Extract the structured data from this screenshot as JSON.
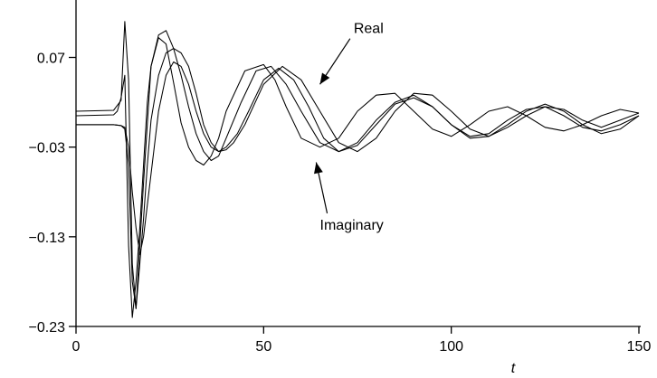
{
  "chart_data": {
    "type": "line",
    "title": "",
    "xlabel": "t",
    "ylabel": "",
    "xlim": [
      0,
      150
    ],
    "ylim": [
      -0.23,
      0.13
    ],
    "xticks": [
      {
        "value": 0,
        "label": "0"
      },
      {
        "value": 50,
        "label": "50"
      },
      {
        "value": 100,
        "label": "100"
      },
      {
        "value": 150,
        "label": "150"
      }
    ],
    "yticks": [
      {
        "value": 0.07,
        "label": "0.07"
      },
      {
        "value": -0.03,
        "label": "−0.03"
      },
      {
        "value": -0.13,
        "label": "−0.13"
      },
      {
        "value": -0.23,
        "label": "−0.23"
      }
    ],
    "grid": false,
    "legend": "none",
    "annotations": [
      {
        "text": "Real",
        "text_at": [
          74,
          0.097
        ],
        "arrow_to": [
          65,
          0.04
        ]
      },
      {
        "text": "Imaginary",
        "text_at": [
          65,
          -0.122
        ],
        "arrow_to": [
          64,
          -0.047
        ]
      }
    ],
    "series": [
      {
        "x": [
          0,
          10,
          12,
          13,
          14,
          15,
          16,
          18,
          20,
          22,
          24,
          26,
          28,
          30,
          32,
          34,
          36,
          38,
          40,
          45,
          50,
          53,
          56,
          60,
          65,
          70,
          75,
          80,
          85,
          90,
          95,
          100,
          105,
          110,
          115,
          120,
          125,
          130,
          135,
          140,
          145,
          150
        ],
        "y": [
          0.01,
          0.011,
          0.022,
          0.11,
          0.045,
          -0.16,
          -0.21,
          -0.07,
          0.06,
          0.092,
          0.085,
          0.042,
          -0.003,
          -0.03,
          -0.045,
          -0.05,
          -0.04,
          -0.02,
          0.01,
          0.055,
          0.062,
          0.045,
          0.015,
          -0.02,
          -0.03,
          -0.02,
          0.01,
          0.028,
          0.03,
          0.01,
          -0.01,
          -0.018,
          -0.005,
          0.01,
          0.015,
          0.005,
          -0.008,
          -0.012,
          -0.005,
          0.005,
          0.012,
          0.008
        ]
      },
      {
        "x": [
          0,
          10,
          11,
          12,
          13,
          14,
          15,
          16,
          17,
          18,
          19,
          20,
          22,
          24,
          26,
          28,
          30,
          32,
          34,
          36,
          38,
          40,
          44,
          48,
          52,
          56,
          60,
          65,
          70,
          75,
          80,
          85,
          90,
          95,
          100,
          105,
          110,
          115,
          120,
          125,
          130,
          135,
          140,
          145,
          150
        ],
        "y": [
          0.005,
          0.006,
          0.01,
          0.025,
          0.05,
          -0.14,
          -0.22,
          -0.18,
          -0.12,
          -0.05,
          0.02,
          0.06,
          0.095,
          0.1,
          0.08,
          0.05,
          0.015,
          -0.015,
          -0.035,
          -0.045,
          -0.04,
          -0.02,
          0.02,
          0.055,
          0.06,
          0.04,
          0.01,
          -0.025,
          -0.035,
          -0.025,
          0.0,
          0.02,
          0.028,
          0.015,
          -0.005,
          -0.02,
          -0.018,
          -0.005,
          0.01,
          0.018,
          0.01,
          -0.005,
          -0.015,
          -0.01,
          0.005
        ]
      },
      {
        "x": [
          0,
          10,
          12,
          13,
          14,
          15,
          16,
          17,
          18,
          19,
          20,
          22,
          24,
          26,
          28,
          30,
          32,
          34,
          36,
          38,
          40,
          42,
          45,
          50,
          55,
          60,
          65,
          70,
          75,
          80,
          85,
          90,
          95,
          100,
          105,
          110,
          115,
          120,
          125,
          130,
          135,
          140,
          145,
          150
        ],
        "y": [
          -0.005,
          -0.005,
          -0.006,
          -0.01,
          -0.05,
          -0.18,
          -0.21,
          -0.16,
          -0.11,
          -0.05,
          0.0,
          0.05,
          0.075,
          0.08,
          0.075,
          0.06,
          0.03,
          -0.005,
          -0.025,
          -0.035,
          -0.033,
          -0.025,
          -0.005,
          0.04,
          0.06,
          0.045,
          0.01,
          -0.025,
          -0.035,
          -0.02,
          0.01,
          0.03,
          0.028,
          0.01,
          -0.01,
          -0.018,
          -0.008,
          0.005,
          0.015,
          0.012,
          0.0,
          -0.008,
          0.0,
          0.008
        ]
      },
      {
        "x": [
          0,
          10,
          12,
          13,
          14,
          15,
          16,
          17,
          18,
          20,
          22,
          24,
          26,
          28,
          30,
          32,
          34,
          36,
          38,
          40,
          43,
          46,
          50,
          54,
          58,
          62,
          66,
          70,
          75,
          80,
          85,
          90,
          95,
          100,
          105,
          110,
          115,
          120,
          125,
          130,
          135,
          140,
          145,
          150
        ],
        "y": [
          -0.005,
          -0.005,
          -0.006,
          -0.008,
          -0.03,
          -0.08,
          -0.12,
          -0.15,
          -0.13,
          -0.06,
          0.01,
          0.05,
          0.065,
          0.06,
          0.04,
          0.01,
          -0.015,
          -0.03,
          -0.035,
          -0.03,
          -0.015,
          0.01,
          0.045,
          0.058,
          0.045,
          0.015,
          -0.02,
          -0.035,
          -0.028,
          -0.005,
          0.018,
          0.025,
          0.015,
          -0.005,
          -0.018,
          -0.015,
          0.0,
          0.012,
          0.015,
          0.005,
          -0.008,
          -0.012,
          -0.005,
          0.005
        ]
      }
    ]
  }
}
